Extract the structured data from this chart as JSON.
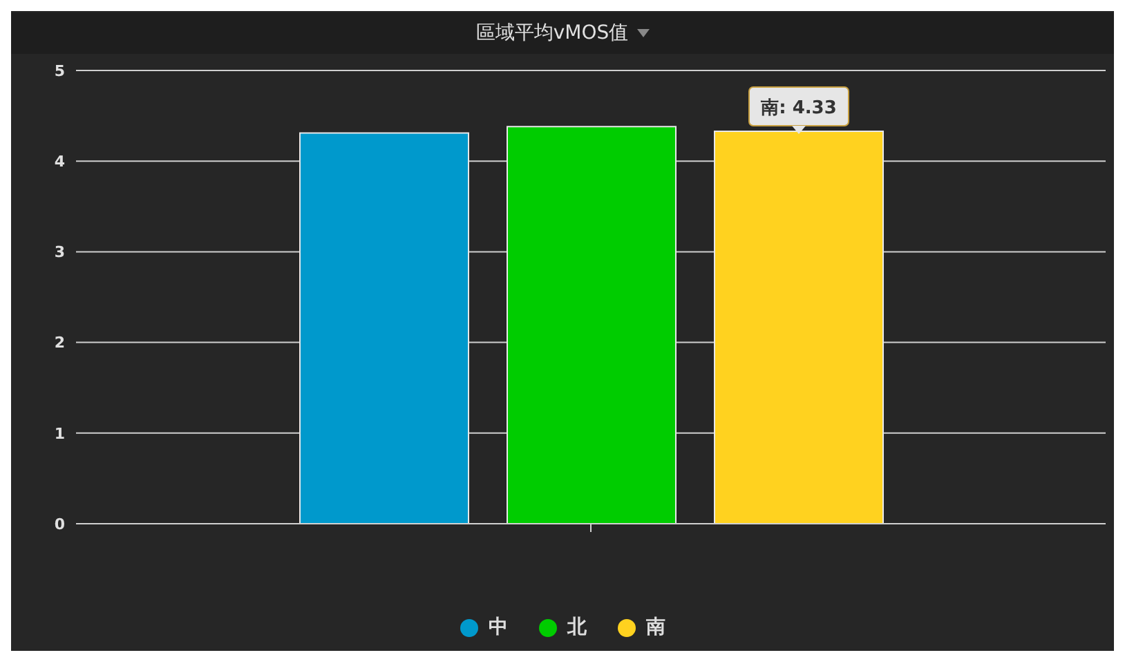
{
  "chart_data": {
    "type": "bar",
    "title": "區域平均vMOS值",
    "categories": [
      null
    ],
    "series": [
      {
        "name": "中",
        "color": "#0099cc",
        "values": [
          4.31
        ]
      },
      {
        "name": "北",
        "color": "#00cc00",
        "values": [
          4.38
        ]
      },
      {
        "name": "南",
        "color": "#ffd21f",
        "values": [
          4.33
        ]
      }
    ],
    "ylim": [
      0,
      5
    ],
    "yticks": [
      0,
      1,
      2,
      3,
      4,
      5
    ],
    "grid": "y",
    "legend": "bottom",
    "annotations": [
      {
        "text": "南: 4.33",
        "y": 4.33
      }
    ]
  }
}
